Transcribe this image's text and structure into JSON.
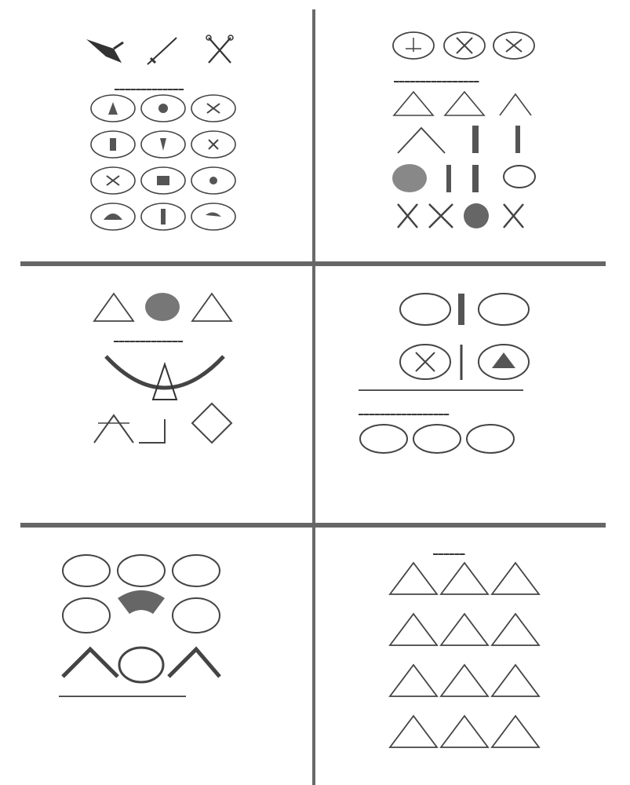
{
  "layout": {
    "panels": [
      {
        "id": "panel-1",
        "description_icons": [
          "wreath-emblem-icon",
          "triangle-emblem-icon"
        ]
      },
      {
        "id": "panel-2"
      },
      {
        "id": "panel-3"
      },
      {
        "id": "panel-4"
      },
      {
        "id": "panel-5"
      },
      {
        "id": "panel-6"
      }
    ]
  },
  "colors": {
    "ink": "#333333",
    "divider": "#666666",
    "paper": "#ffffff"
  }
}
